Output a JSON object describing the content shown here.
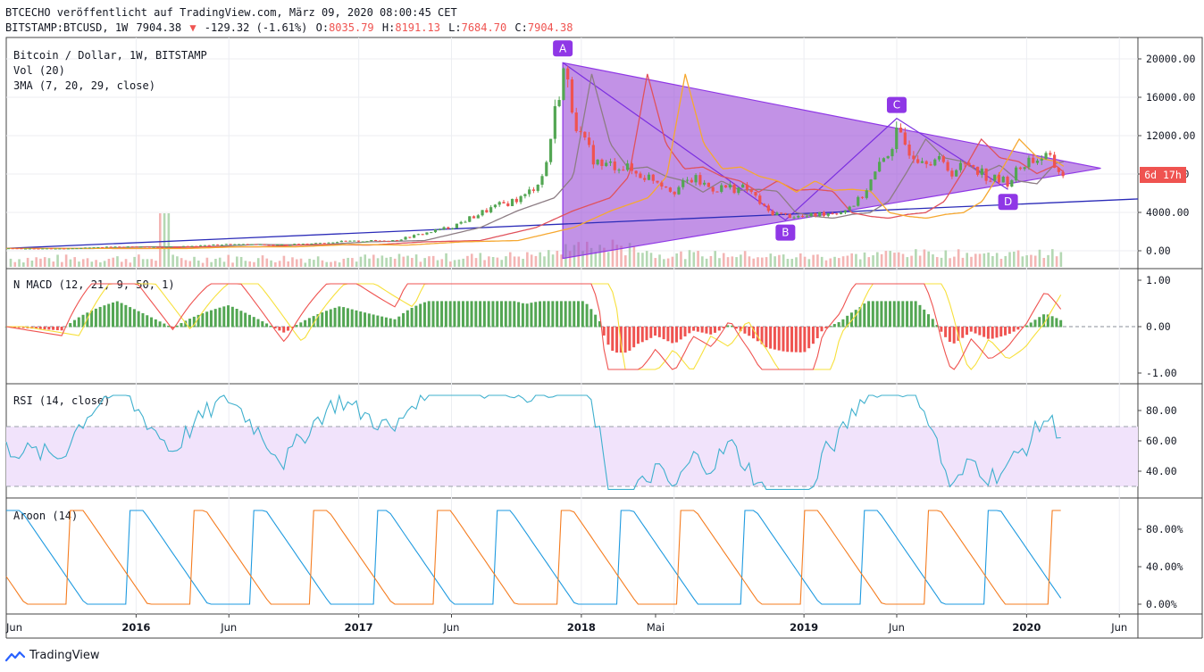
{
  "header": {
    "line1": "BTCECHO veröffentlicht auf TradingView.com, März 09, 2020 08:00:45 CET",
    "symbol": "BITSTAMP:BTCUSD, 1W",
    "last": "7904.38",
    "arrow": "▼",
    "change": "-129.32 (-1.61%)",
    "o_label": "O:",
    "o": "8035.79",
    "h_label": "H:",
    "h": "8191.13",
    "l_label": "L:",
    "l": "7684.70",
    "c_label": "C:",
    "c": "7904.38"
  },
  "main_legend": [
    "Bitcoin / Dollar, 1W, BITSTAMP",
    "Vol (20)",
    "3MA (7, 20, 29, close)"
  ],
  "panes": {
    "macd": {
      "title": "N MACD (12, 21, 9, 50, 1)",
      "ticks": [
        "1.00",
        "0.00",
        "-1.00"
      ]
    },
    "rsi": {
      "title": "RSI (14, close)",
      "ticks": [
        "80.00",
        "60.00",
        "40.00"
      ]
    },
    "aroon": {
      "title": "Aroon (14)",
      "ticks": [
        "80.00%",
        "40.00%",
        "0.00%"
      ]
    }
  },
  "price_ticks": [
    "20000.00",
    "16000.00",
    "12000.00",
    "8000.00",
    "4000.00",
    "0.00"
  ],
  "countdown_label": "6d 17h",
  "time_labels": [
    {
      "t": "Jun",
      "bold": false
    },
    {
      "t": "2016",
      "bold": true
    },
    {
      "t": "Jun",
      "bold": false
    },
    {
      "t": "2017",
      "bold": true
    },
    {
      "t": "Jun",
      "bold": false
    },
    {
      "t": "2018",
      "bold": true
    },
    {
      "t": "Mai",
      "bold": false
    },
    {
      "t": "2019",
      "bold": true
    },
    {
      "t": "Jun",
      "bold": false
    },
    {
      "t": "2020",
      "bold": true
    },
    {
      "t": "Jun",
      "bold": false
    }
  ],
  "points": [
    {
      "name": "A",
      "date": "2017-12",
      "price": 19600
    },
    {
      "name": "B",
      "date": "2018-12",
      "price": 3200
    },
    {
      "name": "C",
      "date": "2019-06",
      "price": 13800
    },
    {
      "name": "D",
      "date": "2019-12",
      "price": 6400
    }
  ],
  "logo_text": "TradingView",
  "colors": {
    "up": "#53a653",
    "down": "#ef5350",
    "triangle": "#9c4fd6",
    "marker": "#8f37e6",
    "rsi_line": "#3fb0ce",
    "rsi_band": "#f1e3fb",
    "aroon_up": "#f57c1f",
    "aroon_down": "#1e9ae0",
    "macd_red": "#ef5350",
    "macd_yellow": "#f7e03c",
    "ma_gray": "#8d7d84",
    "ma_red": "#e0525c",
    "ma_orange": "#f6a830",
    "trendline": "#2b2bb8"
  },
  "chart_data": {
    "type": "candlestick",
    "title": "Bitcoin / Dollar, 1W, BITSTAMP",
    "x_range": [
      "2015-06",
      "2020-06"
    ],
    "y_range": [
      0,
      20000
    ],
    "price_series": [
      [
        "2015-06",
        250
      ],
      [
        "2015-09",
        235
      ],
      [
        "2015-12",
        430
      ],
      [
        "2016-03",
        420
      ],
      [
        "2016-06",
        680
      ],
      [
        "2016-09",
        610
      ],
      [
        "2016-12",
        960
      ],
      [
        "2017-03",
        1100
      ],
      [
        "2017-06",
        2500
      ],
      [
        "2017-08",
        4300
      ],
      [
        "2017-10",
        5700
      ],
      [
        "2017-11",
        8000
      ],
      [
        "2017-12",
        19000
      ],
      [
        "2018-01",
        11500
      ],
      [
        "2018-02",
        8800
      ],
      [
        "2018-03",
        9000
      ],
      [
        "2018-04",
        8000
      ],
      [
        "2018-05",
        7500
      ],
      [
        "2018-06",
        6300
      ],
      [
        "2018-07",
        7500
      ],
      [
        "2018-08",
        6500
      ],
      [
        "2018-09",
        6600
      ],
      [
        "2018-10",
        6400
      ],
      [
        "2018-11",
        4100
      ],
      [
        "2018-12",
        3700
      ],
      [
        "2019-01",
        3500
      ],
      [
        "2019-02",
        3900
      ],
      [
        "2019-03",
        4100
      ],
      [
        "2019-04",
        5300
      ],
      [
        "2019-05",
        8500
      ],
      [
        "2019-06",
        12000
      ],
      [
        "2019-07",
        10000
      ],
      [
        "2019-08",
        9600
      ],
      [
        "2019-09",
        8300
      ],
      [
        "2019-10",
        9200
      ],
      [
        "2019-11",
        7500
      ],
      [
        "2019-12",
        7200
      ],
      [
        "2020-01",
        9400
      ],
      [
        "2020-02",
        9800
      ],
      [
        "2020-03",
        7904
      ]
    ],
    "triangle": {
      "apex_date": "2020-05",
      "apex_price": 8600,
      "base_low_price": -800
    },
    "support_line": [
      [
        "2015-06",
        250
      ],
      [
        "2020-06",
        5400
      ]
    ]
  }
}
